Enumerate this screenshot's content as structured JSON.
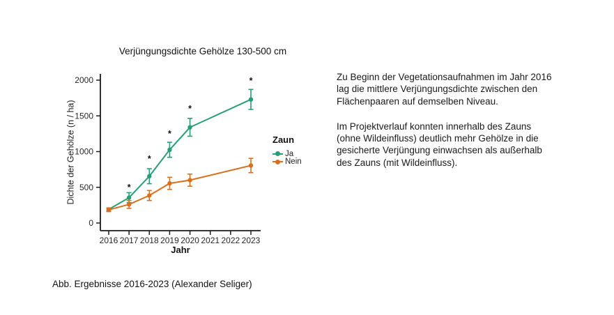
{
  "page": {
    "background": "#ffffff"
  },
  "chart_data": {
    "type": "line",
    "title": "Verjüngungsdichte Gehölze 130-500 cm",
    "xlabel": "Jahr",
    "ylabel": "Dichte der Gehölze (n / ha)",
    "x_ticks": [
      "2016",
      "2017",
      "2018",
      "2019",
      "2020",
      "2021",
      "2022",
      "2023"
    ],
    "y_ticks": [
      0,
      500,
      1000,
      1500,
      2000
    ],
    "xlim": [
      2016,
      2023
    ],
    "ylim": [
      0,
      2000
    ],
    "grid": false,
    "error_bars": true,
    "x": [
      2016,
      2017,
      2018,
      2019,
      2020,
      2023
    ],
    "series": [
      {
        "name": "Ja",
        "color": "#279d78",
        "values": [
          190,
          355,
          655,
          1025,
          1340,
          1730
        ],
        "errors": [
          20,
          70,
          105,
          105,
          125,
          140
        ]
      },
      {
        "name": "Nein",
        "color": "#d8701e",
        "values": [
          185,
          260,
          385,
          555,
          600,
          805
        ],
        "errors": [
          25,
          55,
          70,
          85,
          85,
          100
        ]
      }
    ],
    "significance_markers": {
      "symbol": "*",
      "years": [
        2017,
        2018,
        2019,
        2020,
        2023
      ],
      "y_values": [
        500,
        900,
        1250,
        1600,
        1990
      ]
    },
    "legend": {
      "title": "Zaun",
      "position": "right",
      "entries": [
        {
          "label": "Ja",
          "color": "#279d78"
        },
        {
          "label": "Nein",
          "color": "#d8701e"
        }
      ]
    }
  },
  "description": {
    "paragraph1": "Zu Beginn der Vegetationsaufnahmen im Jahr 2016\nlag die mittlere Verjüngungsdichte zwischen den\nFlächenpaaren auf demselben Niveau.",
    "paragraph2": "Im Projektverlauf konnten innerhalb des Zauns\n(ohne Wildeinfluss) deutlich mehr Gehölze in die\ngesicherte Verjüngung einwachsen als außerhalb\ndes Zauns (mit Wildeinfluss)."
  },
  "caption": "Abb. Ergebnisse 2016-2023 (Alexander Seliger)"
}
